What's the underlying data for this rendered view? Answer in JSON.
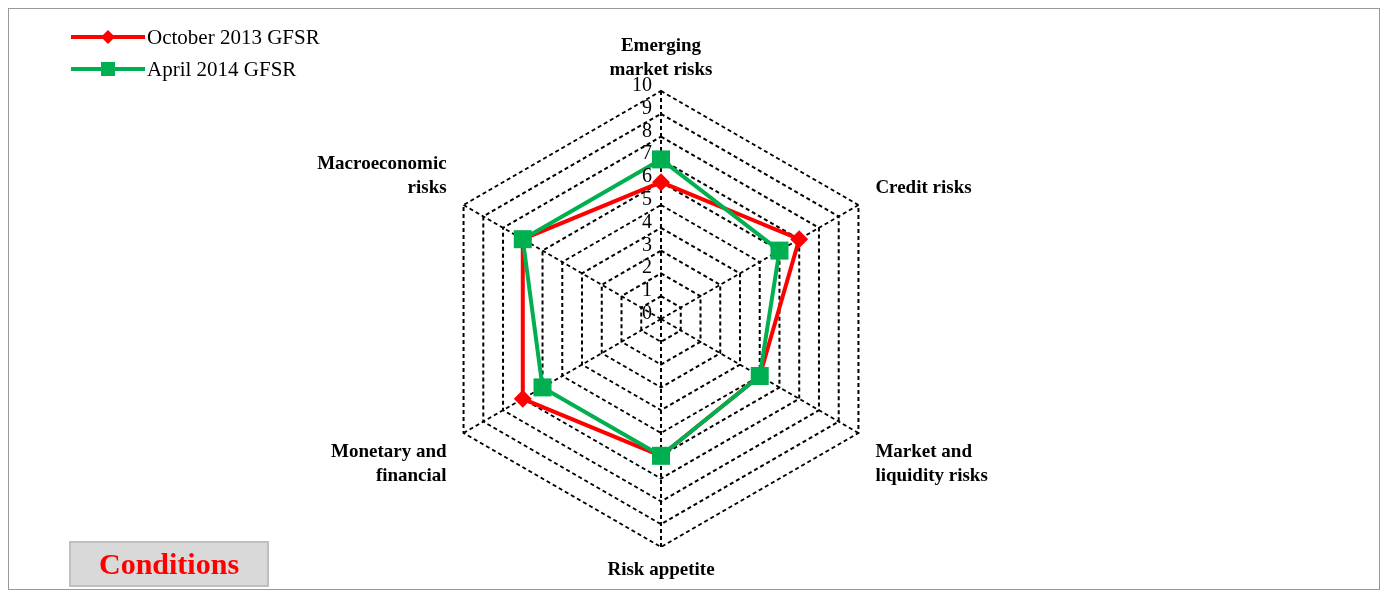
{
  "chart_data": {
    "type": "radar",
    "categories": [
      "Emerging market risks",
      "Credit risks",
      "Market and liquidity risks",
      "Risk appetite",
      "Monetary and financial",
      "Macroeconomic risks"
    ],
    "series": [
      {
        "name": "October 2013 GFSR",
        "color": "#ff0000",
        "marker": "diamond",
        "values": [
          6,
          7,
          5,
          6,
          7,
          7
        ]
      },
      {
        "name": "April 2014 GFSR",
        "color": "#00b050",
        "marker": "square",
        "values": [
          7,
          6,
          5,
          6,
          6,
          7
        ]
      }
    ],
    "ylim": [
      0,
      10
    ],
    "yticks": [
      0,
      1,
      2,
      3,
      4,
      5,
      6,
      7,
      8,
      9,
      10
    ],
    "grid": true,
    "line_style": "solid",
    "legend": "top left",
    "annotations": [
      "Conditions"
    ]
  }
}
